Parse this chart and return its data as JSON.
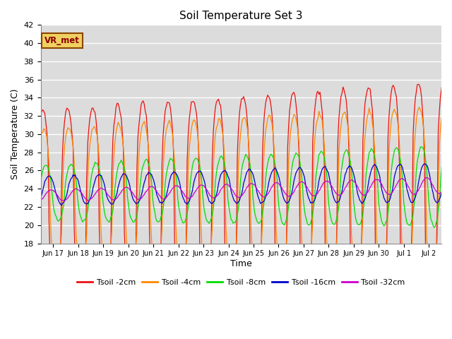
{
  "title": "Soil Temperature Set 3",
  "ylabel": "Soil Temperature (C)",
  "xlabel": "Time",
  "annotation": "VR_met",
  "ylim": [
    18,
    42
  ],
  "bg_color": "#dcdcdc",
  "fig_bg": "#ffffff",
  "colors": {
    "2cm": "#ee1111",
    "4cm": "#ff8800",
    "8cm": "#00dd00",
    "16cm": "#0000cc",
    "32cm": "#cc00cc"
  },
  "labels": [
    "Tsoil -2cm",
    "Tsoil -4cm",
    "Tsoil -8cm",
    "Tsoil -16cm",
    "Tsoil -32cm"
  ],
  "xtick_labels": [
    "Jun 17",
    "Jun 18",
    "Jun 19",
    "Jun 20",
    "Jun 21",
    "Jun 22",
    "Jun 23",
    "Jun 24",
    "Jun 25",
    "Jun 26",
    "Jun 27",
    "Jun 28",
    "Jun 29",
    "Jun 30",
    "Jul 1",
    "Jul 2"
  ],
  "n_days": 17,
  "hours_per_day": 24
}
